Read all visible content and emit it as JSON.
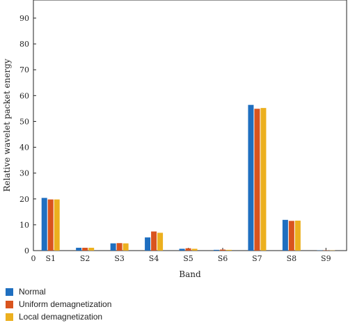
{
  "chart_data": {
    "type": "bar",
    "xlabel": "Band",
    "ylabel": "Relative wavelet packet energy",
    "ylim": [
      0,
      97
    ],
    "yticks": [
      0,
      10,
      20,
      30,
      40,
      50,
      60,
      70,
      80,
      90
    ],
    "x_origin_label": "0",
    "categories": [
      "S1",
      "S2",
      "S3",
      "S4",
      "S5",
      "S6",
      "S7",
      "S8",
      "S9"
    ],
    "legend_position": "bottom-left",
    "grid": false,
    "series": [
      {
        "name": "Normal",
        "color": "#1f6fc0",
        "values": [
          20.4,
          1.1,
          2.8,
          5.1,
          0.7,
          0.3,
          56.4,
          11.9,
          0.1
        ]
      },
      {
        "name": "Uniform demagnetization",
        "color": "#d9541e",
        "values": [
          19.8,
          1.1,
          2.9,
          7.4,
          0.9,
          0.4,
          54.9,
          11.5,
          0.1
        ]
      },
      {
        "name": "Local demagnetization",
        "color": "#ecb01f",
        "values": [
          19.8,
          1.1,
          2.8,
          6.9,
          0.7,
          0.3,
          55.2,
          11.6,
          0.1
        ]
      }
    ]
  }
}
